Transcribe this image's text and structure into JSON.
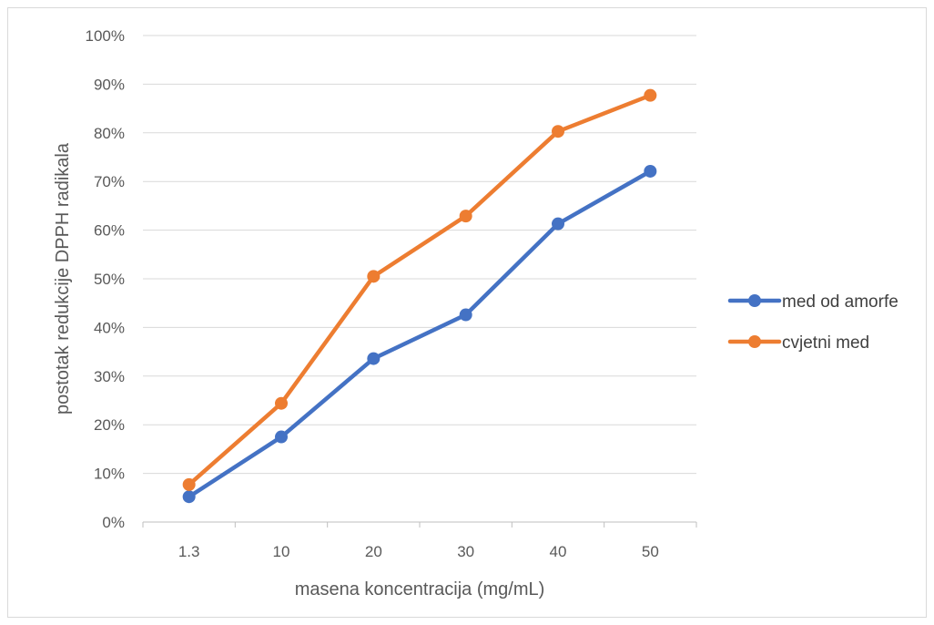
{
  "chart_data": {
    "type": "line",
    "title": "",
    "xlabel": "masena koncentracija (mg/mL)",
    "ylabel": "postotak redukcije DPPH radikala",
    "categories": [
      "1.3",
      "10",
      "20",
      "30",
      "40",
      "50"
    ],
    "ylim": [
      0,
      1
    ],
    "yticks": [
      0,
      0.1,
      0.2,
      0.3,
      0.4,
      0.5,
      0.6,
      0.7,
      0.8,
      0.9,
      1.0
    ],
    "ytick_labels": [
      "0%",
      "10%",
      "20%",
      "30%",
      "40%",
      "50%",
      "60%",
      "70%",
      "80%",
      "90%",
      "100%"
    ],
    "grid": true,
    "legend_position": "right",
    "series": [
      {
        "name": "med od amorfe",
        "color": "#4472c4",
        "values": [
          0.052,
          0.175,
          0.336,
          0.426,
          0.613,
          0.721
        ]
      },
      {
        "name": "cvjetni med",
        "color": "#ed7d31",
        "values": [
          0.077,
          0.244,
          0.505,
          0.629,
          0.803,
          0.877
        ]
      }
    ]
  }
}
